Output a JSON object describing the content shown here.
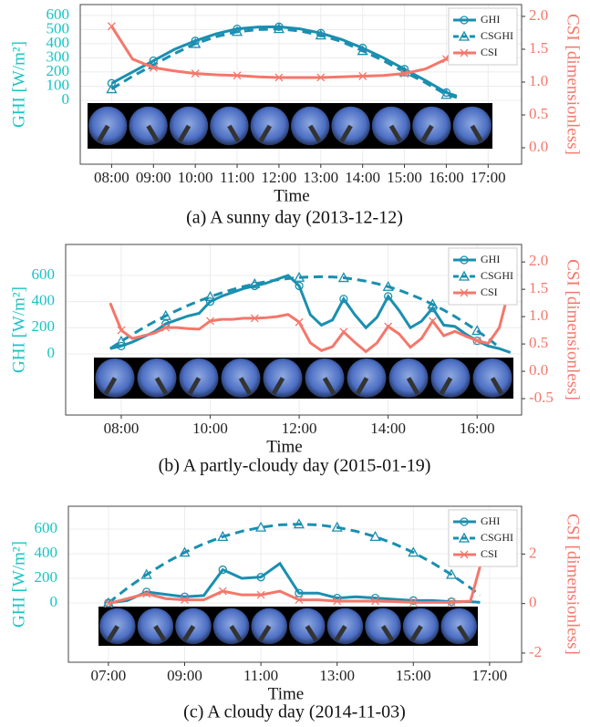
{
  "chart_data": [
    {
      "type": "line",
      "caption": "(a) A sunny day (2013-12-12)",
      "x_label": "Time",
      "y_label": "GHI [W/m²]",
      "y2_label": "CSI [dimensionless]",
      "grid": true,
      "legend": "upper right",
      "x": [
        8,
        8.5,
        9,
        9.5,
        10,
        10.5,
        11,
        11.5,
        12,
        12.5,
        13,
        13.5,
        14,
        14.5,
        15,
        15.5,
        16,
        16.25
      ],
      "xlim": [
        7.25,
        17.8
      ],
      "xticks": [
        {
          "value": 8,
          "label": "08:00"
        },
        {
          "value": 9,
          "label": "09:00"
        },
        {
          "value": 10,
          "label": "10:00"
        },
        {
          "value": 11,
          "label": "11:00"
        },
        {
          "value": 12,
          "label": "12:00"
        },
        {
          "value": 13,
          "label": "13:00"
        },
        {
          "value": 14,
          "label": "14:00"
        },
        {
          "value": 15,
          "label": "15:00"
        },
        {
          "value": 16,
          "label": "16:00"
        },
        {
          "value": 17,
          "label": "17:00"
        }
      ],
      "ylim": [
        -452,
        677
      ],
      "yticks": [
        0,
        100,
        200,
        300,
        400,
        500,
        600
      ],
      "y2lim": [
        -0.25,
        2.18
      ],
      "y2ticks": [
        {
          "value": 0,
          "label": "0.0"
        },
        {
          "value": 0.5,
          "label": "0.5"
        },
        {
          "value": 1,
          "label": "1.0"
        },
        {
          "value": 1.5,
          "label": "1.5"
        },
        {
          "value": 2,
          "label": "2.0"
        }
      ],
      "series": [
        {
          "name": "GHI",
          "color": "#1a8fb0",
          "linestyle": "solid",
          "marker": "circle",
          "values": [
            120,
            200,
            280,
            360,
            420,
            470,
            505,
            518,
            520,
            505,
            475,
            430,
            370,
            300,
            220,
            140,
            55,
            30
          ]
        },
        {
          "name": "CSGHI",
          "color": "#1a8fb0",
          "linestyle": "dashed",
          "marker": "triangle",
          "values": [
            80,
            170,
            250,
            330,
            400,
            450,
            485,
            500,
            505,
            490,
            460,
            415,
            350,
            280,
            200,
            125,
            40,
            20
          ]
        },
        {
          "name": "CSI",
          "color": "#f4776b",
          "linestyle": "solid",
          "marker": "x",
          "axis": "y2",
          "values": [
            1.85,
            1.35,
            1.22,
            1.17,
            1.13,
            1.11,
            1.1,
            1.08,
            1.07,
            1.07,
            1.07,
            1.08,
            1.09,
            1.1,
            1.13,
            1.2,
            1.35,
            1.55
          ]
        }
      ]
    },
    {
      "type": "line",
      "caption": "(b) A partly-cloudy day (2015-01-19)",
      "x_label": "Time",
      "y_label": "GHI [W/m²]",
      "y2_label": "CSI [dimensionless]",
      "grid": true,
      "legend": "upper right",
      "x": [
        7.75,
        8,
        8.25,
        8.5,
        8.75,
        9,
        9.25,
        9.5,
        9.75,
        10,
        10.25,
        10.5,
        10.75,
        11,
        11.25,
        11.5,
        11.75,
        12,
        12.25,
        12.5,
        12.75,
        13,
        13.25,
        13.5,
        13.75,
        14,
        14.25,
        14.5,
        14.75,
        15,
        15.25,
        15.5,
        15.75,
        16,
        16.25,
        16.5,
        16.75
      ],
      "xlim": [
        6.75,
        17
      ],
      "xticks": [
        {
          "value": 8,
          "label": "08:00"
        },
        {
          "value": 10,
          "label": "10:00"
        },
        {
          "value": 12,
          "label": "12:00"
        },
        {
          "value": 14,
          "label": "14:00"
        },
        {
          "value": 16,
          "label": "16:00"
        }
      ],
      "ylim": [
        -468,
        837
      ],
      "yticks": [
        0,
        200,
        400,
        600
      ],
      "y2lim": [
        -0.8,
        2.32
      ],
      "y2ticks": [
        {
          "value": -0.5,
          "label": "-0.5"
        },
        {
          "value": 0,
          "label": "0.0"
        },
        {
          "value": 0.5,
          "label": "0.5"
        },
        {
          "value": 1,
          "label": "1.0"
        },
        {
          "value": 1.5,
          "label": "1.5"
        },
        {
          "value": 2,
          "label": "2.0"
        }
      ],
      "series": [
        {
          "name": "GHI",
          "color": "#1a8fb0",
          "linestyle": "solid",
          "marker": "circle",
          "values": [
            40,
            60,
            90,
            130,
            170,
            230,
            260,
            290,
            310,
            400,
            440,
            470,
            500,
            520,
            540,
            570,
            600,
            520,
            300,
            220,
            260,
            420,
            300,
            200,
            280,
            440,
            330,
            200,
            250,
            350,
            220,
            210,
            150,
            100,
            60,
            40,
            10
          ]
        },
        {
          "name": "CSGHI",
          "color": "#1a8fb0",
          "linestyle": "dashed",
          "marker": "triangle",
          "values": [
            40,
            96,
            149,
            200,
            247,
            291,
            332,
            370,
            405,
            437,
            466,
            492,
            515,
            535,
            552,
            566,
            576,
            584,
            588,
            590,
            588,
            582,
            571,
            556,
            537,
            514,
            487,
            455,
            419,
            379,
            335,
            286,
            233,
            177,
            117,
            50,
            null
          ]
        },
        {
          "name": "CSI",
          "color": "#f4776b",
          "linestyle": "solid",
          "marker": "x",
          "axis": "y2",
          "values": [
            1.25,
            0.75,
            0.6,
            0.65,
            0.7,
            0.8,
            0.8,
            0.78,
            0.77,
            0.92,
            0.95,
            0.95,
            0.97,
            0.97,
            0.98,
            1.0,
            1.04,
            0.9,
            0.52,
            0.38,
            0.45,
            0.72,
            0.53,
            0.36,
            0.52,
            0.82,
            0.68,
            0.44,
            0.6,
            0.92,
            0.65,
            0.73,
            0.64,
            0.56,
            0.51,
            0.8,
            1.6
          ]
        }
      ]
    },
    {
      "type": "line",
      "caption": "(c) A cloudy day (2014-11-03)",
      "x_label": "Time",
      "y_label": "GHI [W/m²]",
      "y2_label": "CSI [dimensionless]",
      "grid": true,
      "legend": "upper right",
      "x": [
        7,
        7.5,
        8,
        8.5,
        9,
        9.5,
        10,
        10.5,
        11,
        11.5,
        12,
        12.5,
        13,
        13.5,
        14,
        14.5,
        15,
        15.5,
        16,
        16.5,
        16.75
      ],
      "xlim": [
        5.95,
        17.84
      ],
      "xticks": [
        {
          "value": 7,
          "label": "07:00"
        },
        {
          "value": 9,
          "label": "09:00"
        },
        {
          "value": 11,
          "label": "11:00"
        },
        {
          "value": 13,
          "label": "13:00"
        },
        {
          "value": 15,
          "label": "15:00"
        },
        {
          "value": 17,
          "label": "17:00"
        }
      ],
      "ylim": [
        -481,
        785
      ],
      "yticks": [
        0,
        200,
        400,
        600
      ],
      "y2lim": [
        -2.37,
        3.93
      ],
      "y2ticks": [
        -2,
        0,
        2
      ],
      "series": [
        {
          "name": "GHI",
          "color": "#1a8fb0",
          "linestyle": "solid",
          "marker": "circle",
          "values": [
            0,
            20,
            90,
            70,
            50,
            60,
            270,
            200,
            210,
            320,
            80,
            80,
            40,
            50,
            40,
            30,
            20,
            20,
            10,
            10,
            5
          ]
        },
        {
          "name": "CSGHI",
          "color": "#1a8fb0",
          "linestyle": "dashed",
          "marker": "triangle",
          "values": [
            0,
            122,
            230,
            326,
            410,
            480,
            538,
            582,
            614,
            634,
            640,
            634,
            614,
            582,
            538,
            480,
            410,
            326,
            230,
            122,
            62
          ]
        },
        {
          "name": "CSI",
          "color": "#f4776b",
          "linestyle": "solid",
          "marker": "x",
          "axis": "y2",
          "values": [
            0,
            0.2,
            0.4,
            0.2,
            0.15,
            0.15,
            0.5,
            0.35,
            0.35,
            0.5,
            0.15,
            0.15,
            0.1,
            0.1,
            0.1,
            0.08,
            0.05,
            0.05,
            0.05,
            0.1,
            1.5
          ]
        }
      ]
    }
  ]
}
